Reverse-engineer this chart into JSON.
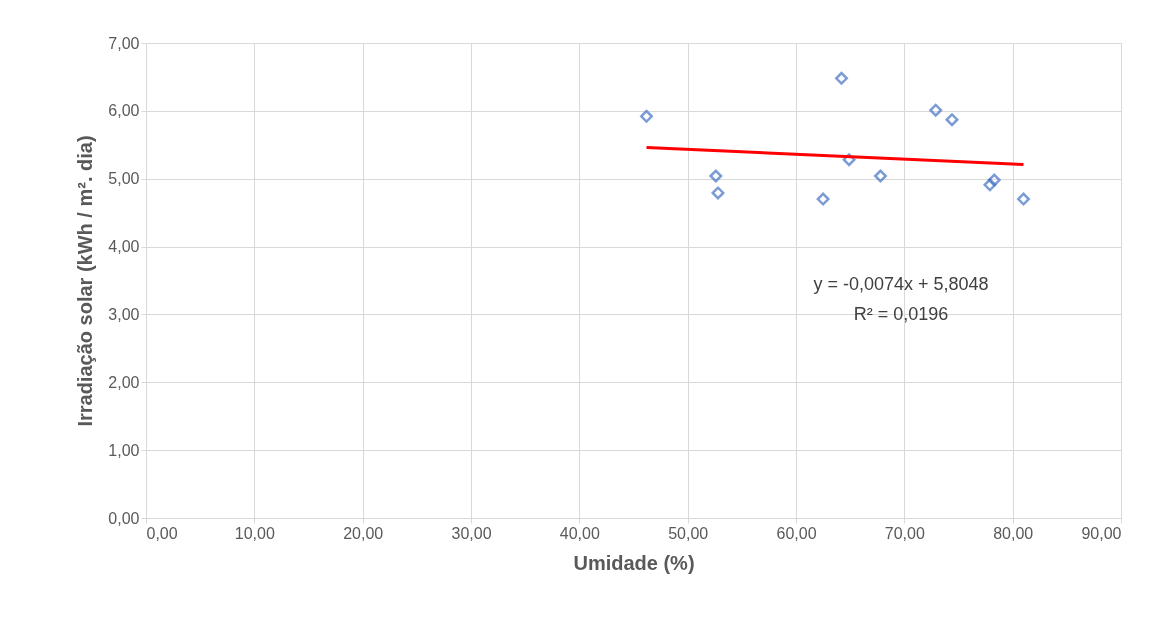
{
  "chart_data": {
    "type": "scatter",
    "xlabel": "Umidade (%)",
    "ylabel": "Irradiação solar (kWh / m². dia)",
    "xlim": [
      0,
      90
    ],
    "ylim": [
      0,
      7
    ],
    "xticks": [
      {
        "value": 0,
        "label": "0,00"
      },
      {
        "value": 10,
        "label": "10,00"
      },
      {
        "value": 20,
        "label": "20,00"
      },
      {
        "value": 30,
        "label": "30,00"
      },
      {
        "value": 40,
        "label": "40,00"
      },
      {
        "value": 50,
        "label": "50,00"
      },
      {
        "value": 60,
        "label": "60,00"
      },
      {
        "value": 70,
        "label": "70,00"
      },
      {
        "value": 80,
        "label": "80,00"
      },
      {
        "value": 90,
        "label": "90,00"
      }
    ],
    "yticks": [
      {
        "value": 0,
        "label": "0,00"
      },
      {
        "value": 1,
        "label": "1,00"
      },
      {
        "value": 2,
        "label": "2,00"
      },
      {
        "value": 3,
        "label": "3,00"
      },
      {
        "value": 4,
        "label": "4,00"
      },
      {
        "value": 5,
        "label": "5,00"
      },
      {
        "value": 6,
        "label": "6,00"
      },
      {
        "value": 7,
        "label": "7,00"
      }
    ],
    "grid": true,
    "series": [
      {
        "color": "#4472c4",
        "marker": "diamond",
        "x": [
          46.2,
          52.6,
          52.8,
          62.5,
          64.2,
          64.9,
          67.8,
          72.9,
          74.4,
          78.3,
          77.9,
          81.0
        ],
        "values": [
          5.92,
          5.04,
          4.79,
          4.7,
          6.48,
          5.28,
          5.04,
          6.01,
          5.87,
          4.98,
          4.91,
          4.7
        ]
      },
      {
        "type": "line",
        "color": "#ff0000",
        "marker": "none",
        "line_style": "solid",
        "x": [
          46.2,
          81.0
        ],
        "values": [
          5.46,
          5.21
        ]
      }
    ],
    "annotations": [
      "y = -0,0074x + 5,8048",
      "R² = 0,0196"
    ]
  }
}
